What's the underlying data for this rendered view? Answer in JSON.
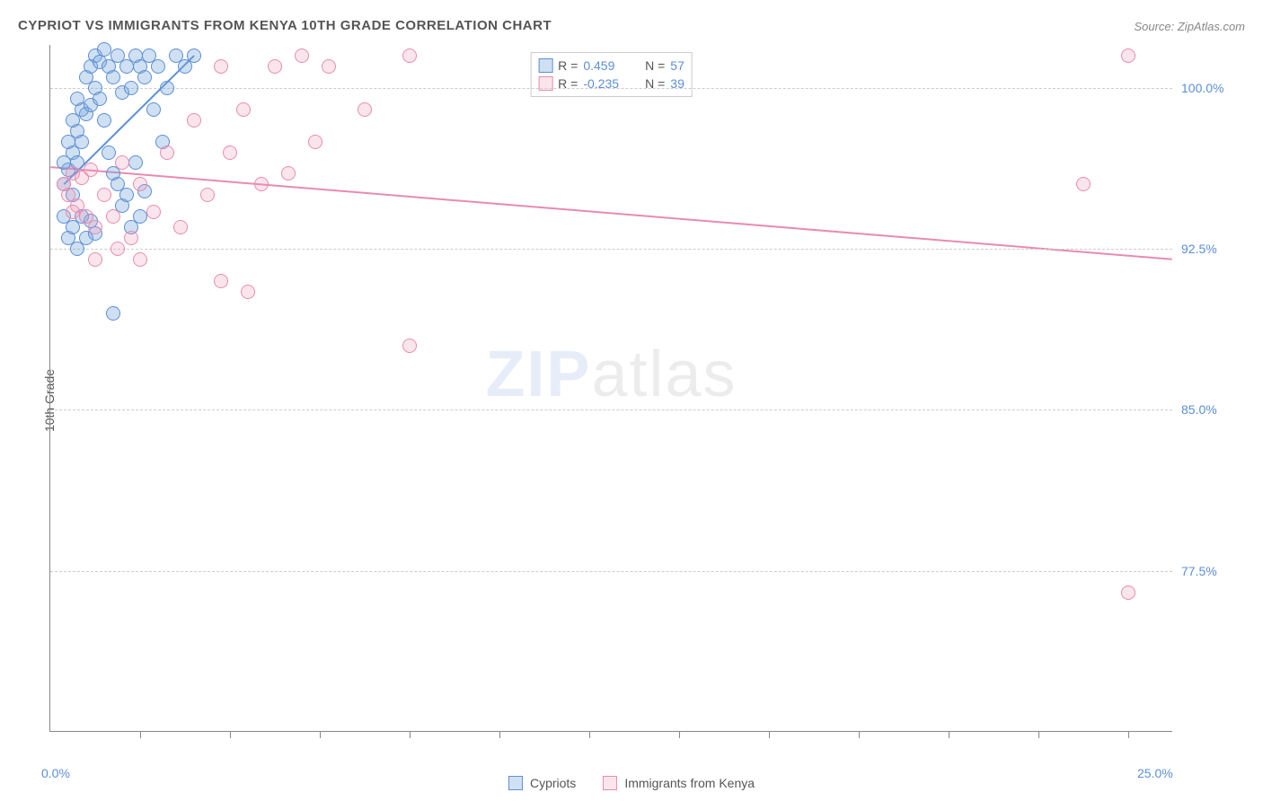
{
  "title": "CYPRIOT VS IMMIGRANTS FROM KENYA 10TH GRADE CORRELATION CHART",
  "source": "Source: ZipAtlas.com",
  "ylabel": "10th Grade",
  "watermark_a": "ZIP",
  "watermark_b": "atlas",
  "chart": {
    "type": "scatter",
    "xlim": [
      0,
      25
    ],
    "ylim": [
      70,
      102
    ],
    "yticks": [
      {
        "v": 77.5,
        "label": "77.5%"
      },
      {
        "v": 85.0,
        "label": "85.0%"
      },
      {
        "v": 92.5,
        "label": "92.5%"
      },
      {
        "v": 100.0,
        "label": "100.0%"
      }
    ],
    "xticks_minor": [
      2,
      4,
      6,
      8,
      10,
      12,
      14,
      16,
      18,
      20,
      22,
      24
    ],
    "xlabels": [
      {
        "v": 0,
        "label": "0.0%"
      },
      {
        "v": 25,
        "label": "25.0%"
      }
    ],
    "background_color": "#ffffff",
    "grid_color": "#cccccc",
    "axis_color": "#888888",
    "series": [
      {
        "name": "Cypriots",
        "color": "#5b8fd6",
        "fill": "rgba(120,165,220,0.35)",
        "class": "blue",
        "R": "0.459",
        "N": "57",
        "trend": {
          "x1": 0.3,
          "y1": 95.5,
          "x2": 3.2,
          "y2": 101.5,
          "width": 2
        },
        "points": [
          [
            0.3,
            95.5
          ],
          [
            0.4,
            96.2
          ],
          [
            0.5,
            97.0
          ],
          [
            0.5,
            95.0
          ],
          [
            0.6,
            98.0
          ],
          [
            0.6,
            96.5
          ],
          [
            0.7,
            99.0
          ],
          [
            0.7,
            97.5
          ],
          [
            0.8,
            100.5
          ],
          [
            0.8,
            98.8
          ],
          [
            0.9,
            101.0
          ],
          [
            0.9,
            99.2
          ],
          [
            1.0,
            101.5
          ],
          [
            1.0,
            100.0
          ],
          [
            1.1,
            101.2
          ],
          [
            1.1,
            99.5
          ],
          [
            1.2,
            101.8
          ],
          [
            1.2,
            98.5
          ],
          [
            1.3,
            101.0
          ],
          [
            1.3,
            97.0
          ],
          [
            1.4,
            100.5
          ],
          [
            1.4,
            96.0
          ],
          [
            1.5,
            101.5
          ],
          [
            1.5,
            95.5
          ],
          [
            1.6,
            99.8
          ],
          [
            1.6,
            94.5
          ],
          [
            1.7,
            101.0
          ],
          [
            1.7,
            95.0
          ],
          [
            1.8,
            100.0
          ],
          [
            1.8,
            93.5
          ],
          [
            1.9,
            101.5
          ],
          [
            1.9,
            96.5
          ],
          [
            2.0,
            101.0
          ],
          [
            2.0,
            94.0
          ],
          [
            2.1,
            100.5
          ],
          [
            2.1,
            95.2
          ],
          [
            2.2,
            101.5
          ],
          [
            2.3,
            99.0
          ],
          [
            2.4,
            101.0
          ],
          [
            2.5,
            97.5
          ],
          [
            2.6,
            100.0
          ],
          [
            2.8,
            101.5
          ],
          [
            3.0,
            101.0
          ],
          [
            3.2,
            101.5
          ],
          [
            0.4,
            93.0
          ],
          [
            0.5,
            93.5
          ],
          [
            0.6,
            92.5
          ],
          [
            0.7,
            94.0
          ],
          [
            0.8,
            93.0
          ],
          [
            0.9,
            93.8
          ],
          [
            1.0,
            93.2
          ],
          [
            0.3,
            94.0
          ],
          [
            0.3,
            96.5
          ],
          [
            0.4,
            97.5
          ],
          [
            0.5,
            98.5
          ],
          [
            0.6,
            99.5
          ],
          [
            1.4,
            89.5
          ]
        ]
      },
      {
        "name": "Immigrants from Kenya",
        "color": "#e88bb0",
        "fill": "rgba(240,150,180,0.25)",
        "class": "pink",
        "R": "-0.235",
        "N": "39",
        "trend": {
          "x1": 0,
          "y1": 96.3,
          "x2": 25,
          "y2": 92.0,
          "width": 2
        },
        "points": [
          [
            0.3,
            95.5
          ],
          [
            0.4,
            95.0
          ],
          [
            0.5,
            96.0
          ],
          [
            0.6,
            94.5
          ],
          [
            0.7,
            95.8
          ],
          [
            0.8,
            94.0
          ],
          [
            0.9,
            96.2
          ],
          [
            1.0,
            93.5
          ],
          [
            1.2,
            95.0
          ],
          [
            1.4,
            94.0
          ],
          [
            1.6,
            96.5
          ],
          [
            1.8,
            93.0
          ],
          [
            2.0,
            95.5
          ],
          [
            2.3,
            94.2
          ],
          [
            2.6,
            97.0
          ],
          [
            2.9,
            93.5
          ],
          [
            3.2,
            98.5
          ],
          [
            3.5,
            95.0
          ],
          [
            3.8,
            101.0
          ],
          [
            4.0,
            97.0
          ],
          [
            4.3,
            99.0
          ],
          [
            4.7,
            95.5
          ],
          [
            5.0,
            101.0
          ],
          [
            5.3,
            96.0
          ],
          [
            5.6,
            101.5
          ],
          [
            5.9,
            97.5
          ],
          [
            6.2,
            101.0
          ],
          [
            3.8,
            91.0
          ],
          [
            4.4,
            90.5
          ],
          [
            7.0,
            99.0
          ],
          [
            8.0,
            101.5
          ],
          [
            8.0,
            88.0
          ],
          [
            2.0,
            92.0
          ],
          [
            1.5,
            92.5
          ],
          [
            1.0,
            92.0
          ],
          [
            23.0,
            95.5
          ],
          [
            24.0,
            101.5
          ],
          [
            24.0,
            76.5
          ],
          [
            0.5,
            94.2
          ]
        ]
      }
    ]
  },
  "legend": {
    "label_a": "Cypriots",
    "label_b": "Immigrants from Kenya"
  },
  "statbox": {
    "r_prefix": "R = ",
    "n_prefix": "N = "
  }
}
